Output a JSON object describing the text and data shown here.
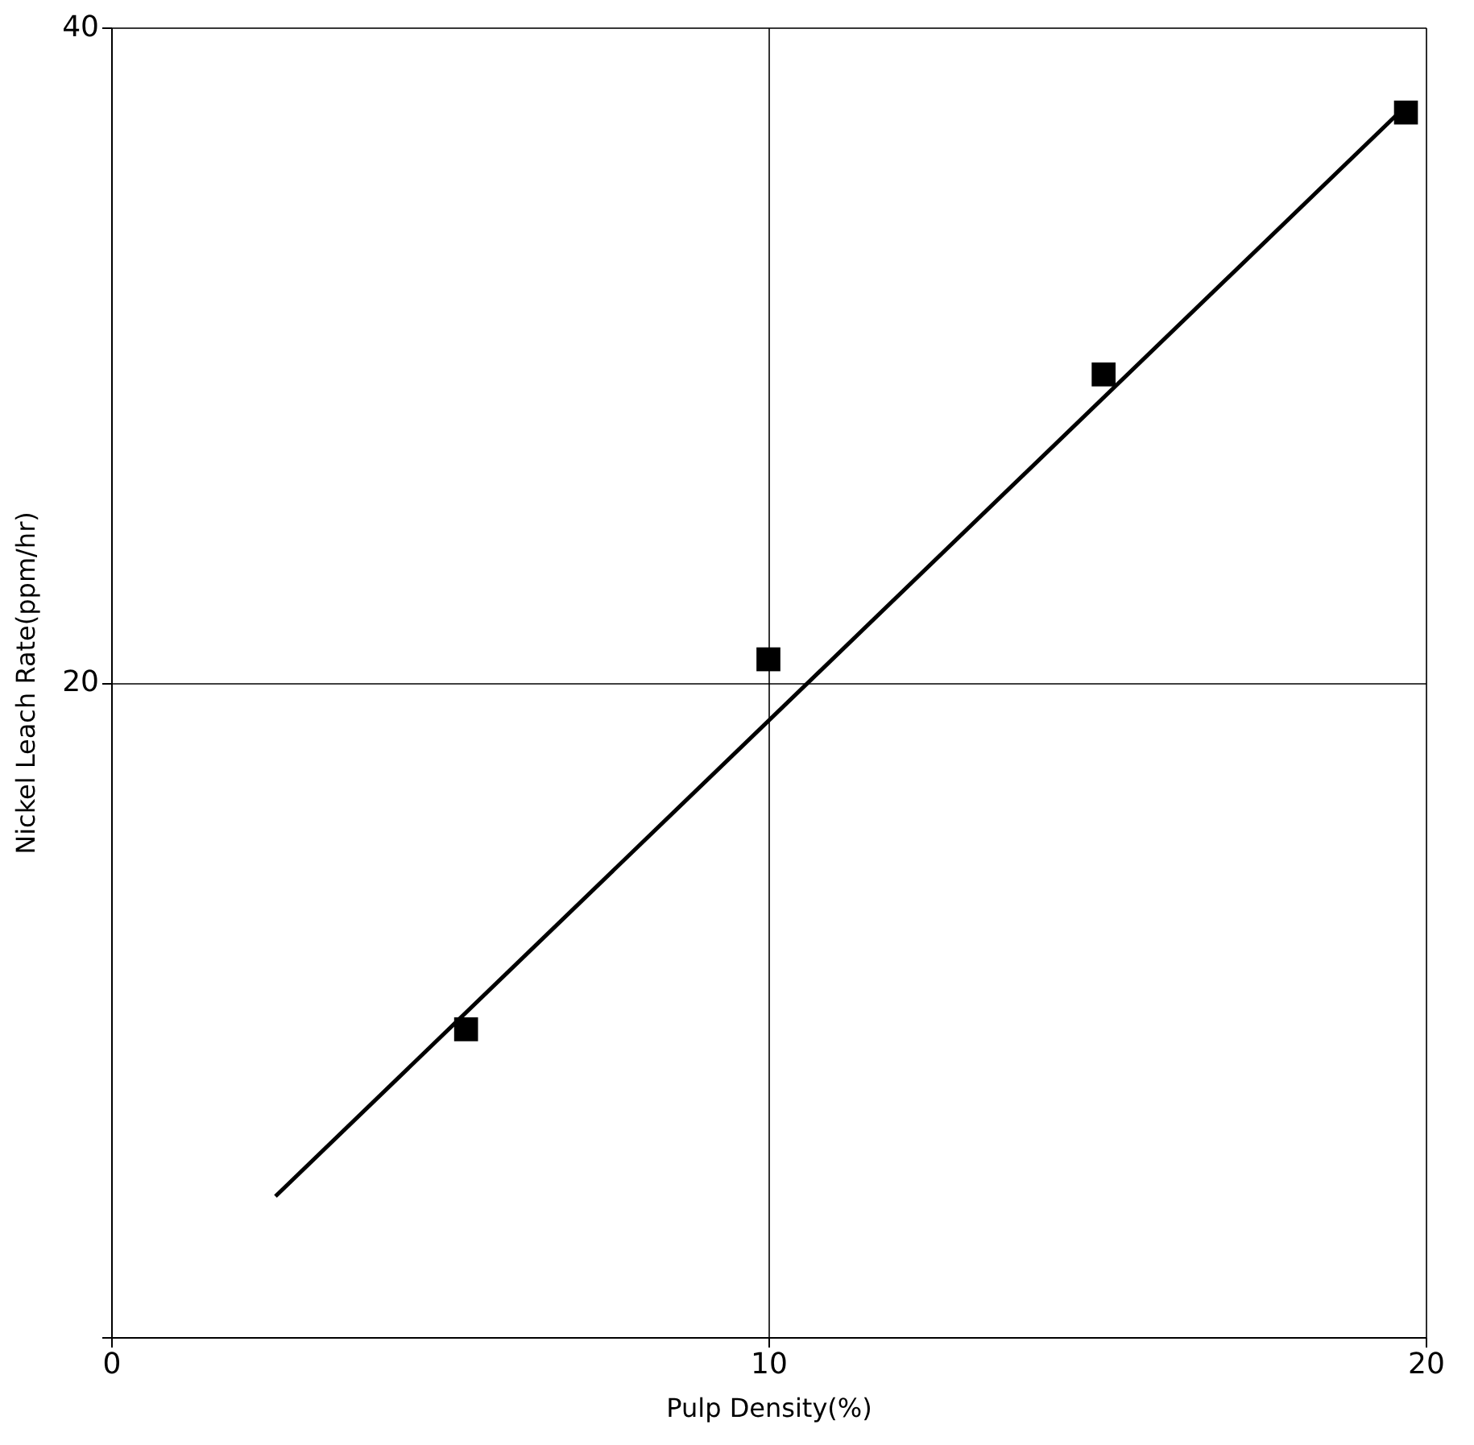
{
  "chart_data": {
    "type": "scatter",
    "xlabel": "Pulp Density(%)",
    "ylabel": "Nickel Leach Rate(ppm/hr)",
    "xlim": [
      0,
      20
    ],
    "ylim": [
      0,
      40
    ],
    "xticks": [
      0,
      10,
      20
    ],
    "yticks": [
      {
        "value": 0,
        "label": null
      },
      20,
      40
    ],
    "grid": true,
    "marker": "square",
    "series": [
      {
        "color": "#000000",
        "x": [
          5.4,
          10.0,
          15.1,
          19.7
        ],
        "values": [
          9.4,
          20.7,
          29.4,
          37.4
        ]
      },
      {
        "type": "line",
        "color": "#000000",
        "marker": "none",
        "line_style": "solid",
        "x": [
          2.5,
          19.7
        ],
        "values": [
          4.3,
          37.6
        ]
      }
    ]
  }
}
